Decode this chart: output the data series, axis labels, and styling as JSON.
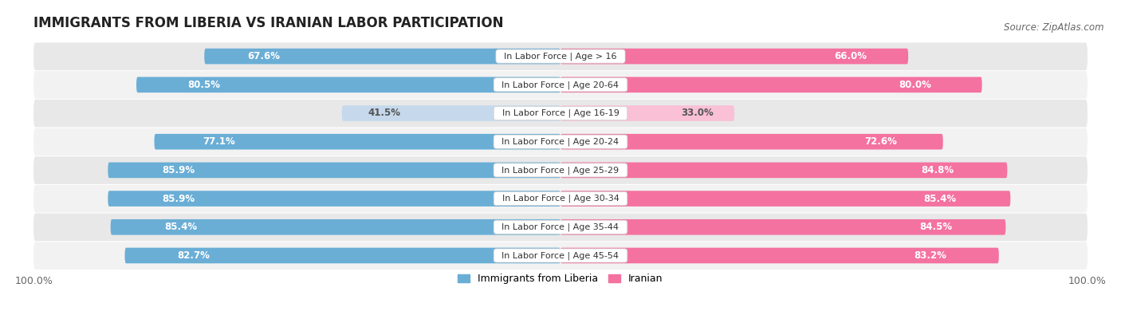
{
  "title": "IMMIGRANTS FROM LIBERIA VS IRANIAN LABOR PARTICIPATION",
  "source": "Source: ZipAtlas.com",
  "categories": [
    "In Labor Force | Age > 16",
    "In Labor Force | Age 20-64",
    "In Labor Force | Age 16-19",
    "In Labor Force | Age 20-24",
    "In Labor Force | Age 25-29",
    "In Labor Force | Age 30-34",
    "In Labor Force | Age 35-44",
    "In Labor Force | Age 45-54"
  ],
  "liberia_values": [
    67.6,
    80.5,
    41.5,
    77.1,
    85.9,
    85.9,
    85.4,
    82.7
  ],
  "iranian_values": [
    66.0,
    80.0,
    33.0,
    72.6,
    84.8,
    85.4,
    84.5,
    83.2
  ],
  "liberia_color": "#6aaed6",
  "liberia_color_light": "#c6d9ec",
  "iranian_color": "#f472a0",
  "iranian_color_light": "#f9c0d6",
  "row_bg_color": "#e8e8e8",
  "row_bg_color_alt": "#f2f2f2",
  "label_color_white": "#ffffff",
  "label_color_dark": "#555555",
  "max_value": 100.0,
  "light_threshold": 50,
  "title_fontsize": 12,
  "label_fontsize": 8.5,
  "category_fontsize": 8,
  "legend_fontsize": 9,
  "footer_fontsize": 9,
  "legend_liberia": "Immigrants from Liberia",
  "legend_iranian": "Iranian"
}
